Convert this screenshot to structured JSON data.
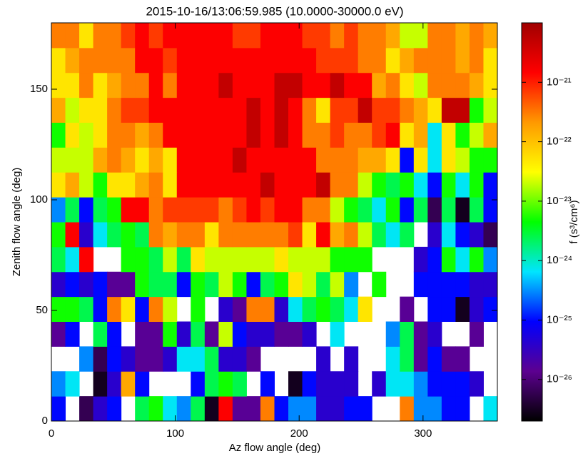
{
  "chart_data": {
    "type": "heatmap",
    "title": "2015-10-16/13:06:59.985 (10.0000-30000.0 eV)",
    "x_label": "Az flow angle (deg)",
    "y_label": "Zenith flow angle (deg)",
    "colorbar_label": "f (s³/cm⁶)",
    "xlim": [
      0,
      360
    ],
    "ylim": [
      0,
      180
    ],
    "xticks": [
      0,
      100,
      200,
      300
    ],
    "yticks": [
      0,
      50,
      100,
      150
    ],
    "xbins": [
      0,
      11.25,
      22.5,
      33.75,
      45,
      56.25,
      67.5,
      78.75,
      90,
      101.25,
      112.5,
      123.75,
      135,
      146.25,
      157.5,
      168.75,
      180,
      191.25,
      202.5,
      213.75,
      225,
      236.25,
      247.5,
      258.75,
      270,
      281.25,
      292.5,
      303.75,
      315,
      326.25,
      337.5,
      348.75,
      360
    ],
    "ybins": [
      0,
      11.25,
      22.5,
      33.75,
      45,
      56.25,
      67.5,
      78.75,
      90,
      101.25,
      112.5,
      123.75,
      135,
      146.25,
      157.5,
      168.75,
      180
    ],
    "zscale": "log",
    "zlim": [
      2e-27,
      1e-20
    ],
    "zticks": [
      {
        "value": 1e-26,
        "label": "10⁻²⁶"
      },
      {
        "value": 1e-25,
        "label": "10⁻²⁵"
      },
      {
        "value": 1e-24,
        "label": "10⁻²⁴"
      },
      {
        "value": 1e-23,
        "label": "10⁻²³"
      },
      {
        "value": 1e-22,
        "label": "10⁻²²"
      },
      {
        "value": 1e-21,
        "label": "10⁻²¹"
      }
    ],
    "colorscale": [
      "#000000",
      "#5c0090",
      "#0000ff",
      "#00e5ff",
      "#00ff00",
      "#ffff00",
      "#ff9900",
      "#ff0000",
      "#a00000"
    ],
    "z": [
      [
        1e-25,
        null,
        6e-27,
        4e-26,
        1e-25,
        null,
        2.5e-24,
        5e-24,
        7e-25,
        3e-25,
        2.5e-24,
        3e-27,
        1.5e-21,
        1.5e-26,
        1.5e-26,
        3e-22,
        1e-25,
        3e-25,
        3e-25,
        4e-26,
        4e-26,
        1e-25,
        1e-25,
        null,
        null,
        3e-22,
        3e-25,
        3e-25,
        1e-25,
        1e-25,
        null,
        7e-25
      ],
      [
        3e-25,
        7e-25,
        null,
        3e-27,
        4e-26,
        1.6e-22,
        1e-25,
        null,
        null,
        null,
        1e-25,
        2.5e-24,
        5e-24,
        2.5e-24,
        null,
        1e-25,
        null,
        3e-27,
        1e-25,
        4e-26,
        4e-26,
        4e-26,
        null,
        4e-26,
        7e-25,
        7e-25,
        3e-25,
        1e-25,
        1e-25,
        1e-25,
        4e-26,
        null
      ],
      [
        null,
        null,
        3e-25,
        6e-27,
        1e-25,
        4e-26,
        1.5e-26,
        1.5e-26,
        4e-26,
        7e-25,
        7e-25,
        2.5e-24,
        4e-26,
        4e-26,
        1.5e-26,
        null,
        null,
        null,
        null,
        4e-26,
        null,
        4e-26,
        null,
        null,
        7e-25,
        2.5e-24,
        1.5e-26,
        1e-25,
        1.5e-26,
        1.5e-26,
        null,
        null
      ],
      [
        1.5e-26,
        1e-25,
        null,
        2.5e-24,
        1e-25,
        null,
        1.5e-26,
        1.5e-26,
        5e-24,
        4e-26,
        2.5e-24,
        1.5e-26,
        2e-23,
        1e-25,
        4e-26,
        4e-26,
        1.5e-26,
        1.5e-26,
        4e-26,
        null,
        7e-25,
        null,
        null,
        null,
        3e-25,
        2.5e-24,
        1.5e-26,
        4e-26,
        null,
        null,
        1.5e-26,
        null
      ],
      [
        5e-24,
        5e-24,
        2.5e-24,
        1e-25,
        3e-22,
        5e-23,
        1e-25,
        3e-22,
        2e-23,
        null,
        5e-24,
        null,
        4e-26,
        1.5e-26,
        3e-22,
        3e-22,
        4e-26,
        7e-25,
        2.5e-24,
        5e-24,
        2.5e-24,
        7e-25,
        5e-23,
        null,
        null,
        1.5e-26,
        null,
        1e-25,
        1e-25,
        3e-27,
        4e-26,
        1e-25
      ],
      [
        4e-26,
        1e-25,
        4e-26,
        1e-25,
        1.5e-26,
        1.5e-26,
        5e-24,
        2.5e-24,
        2.5e-24,
        1e-25,
        5e-24,
        2.5e-24,
        2e-23,
        5e-24,
        1e-25,
        2.5e-24,
        5e-24,
        5e-23,
        2e-23,
        2.5e-24,
        2e-23,
        3e-25,
        null,
        5e-24,
        null,
        null,
        1e-25,
        1e-25,
        1e-25,
        1e-25,
        4e-26,
        4e-26
      ],
      [
        2.5e-24,
        7e-25,
        1.5e-21,
        null,
        null,
        5e-24,
        5e-24,
        2.5e-24,
        2e-23,
        2.5e-24,
        5e-23,
        2e-23,
        2e-23,
        2e-23,
        2e-23,
        2e-23,
        5e-23,
        2e-23,
        2e-23,
        2e-23,
        5e-24,
        5e-24,
        5e-24,
        null,
        null,
        null,
        4e-26,
        1e-25,
        5e-24,
        7e-25,
        5e-24,
        3e-25
      ],
      [
        5e-24,
        1.5e-21,
        4e-26,
        7e-25,
        2.5e-24,
        5e-24,
        2.5e-24,
        3e-22,
        1.6e-22,
        3e-22,
        3e-22,
        5e-23,
        3e-22,
        3e-22,
        3e-22,
        3e-22,
        3e-22,
        7e-22,
        5e-23,
        1.5e-21,
        1.6e-22,
        3e-22,
        2e-23,
        2.5e-24,
        7e-25,
        2.5e-24,
        null,
        4e-26,
        7e-25,
        1e-25,
        4e-26,
        6e-27
      ],
      [
        3e-25,
        2.5e-24,
        1e-25,
        2.5e-24,
        5e-24,
        1.5e-21,
        1.5e-21,
        3e-22,
        7e-22,
        7e-22,
        7e-22,
        7e-22,
        3e-22,
        7e-22,
        1.5e-21,
        7e-22,
        1.5e-21,
        1.5e-21,
        3e-22,
        3e-22,
        2e-23,
        5e-24,
        2.5e-24,
        7e-25,
        5e-24,
        1e-25,
        2.5e-24,
        6e-27,
        2.5e-24,
        3e-27,
        2.5e-24,
        1e-25
      ],
      [
        5e-23,
        1.6e-22,
        2e-23,
        5e-24,
        5e-23,
        5e-23,
        1.6e-22,
        3e-22,
        5e-23,
        1.5e-21,
        1.5e-21,
        1.5e-21,
        1.5e-21,
        1.5e-21,
        1.5e-21,
        5e-21,
        1.5e-21,
        1.5e-21,
        1.5e-21,
        5e-21,
        3e-22,
        3e-22,
        2e-23,
        5e-24,
        2.5e-24,
        5e-24,
        7e-25,
        1e-25,
        5e-24,
        7e-25,
        5e-24,
        1e-25
      ],
      [
        2e-23,
        2e-23,
        2e-23,
        1.6e-22,
        3e-22,
        1.6e-22,
        5e-23,
        1.6e-22,
        5e-23,
        1.5e-21,
        1.5e-21,
        1.5e-21,
        1.5e-21,
        5e-21,
        1.5e-21,
        1.5e-21,
        1.5e-21,
        1.5e-21,
        1.5e-21,
        3e-22,
        3e-22,
        3e-22,
        1.6e-22,
        1.6e-22,
        5e-23,
        1e-25,
        5e-23,
        7e-25,
        5e-23,
        2e-23,
        5e-24,
        5e-24
      ],
      [
        5e-24,
        5e-23,
        2e-23,
        5e-23,
        3e-22,
        3e-22,
        1.6e-22,
        3e-22,
        1.5e-21,
        1.5e-21,
        1.5e-21,
        1.5e-21,
        1.5e-21,
        1.5e-21,
        5e-21,
        1.5e-21,
        5e-21,
        1.5e-21,
        3e-22,
        3e-22,
        7e-22,
        3e-22,
        3e-22,
        7e-22,
        1.5e-21,
        5e-23,
        1.6e-22,
        7e-25,
        5e-23,
        5e-24,
        2e-23,
        1.6e-22
      ],
      [
        1.6e-22,
        2e-23,
        5e-23,
        5e-23,
        3e-22,
        7e-22,
        7e-22,
        1.5e-21,
        1.5e-21,
        1.5e-21,
        1.5e-21,
        1.5e-21,
        1.5e-21,
        1.5e-21,
        5e-21,
        1.5e-21,
        5e-21,
        1.5e-21,
        3e-22,
        5e-23,
        7e-22,
        7e-22,
        5e-21,
        7e-22,
        7e-22,
        3e-22,
        1.6e-22,
        5e-23,
        5e-21,
        5e-21,
        5e-24,
        2e-23
      ],
      [
        5e-23,
        5e-23,
        3e-22,
        5e-23,
        1.6e-22,
        3e-22,
        3e-22,
        1.5e-21,
        3e-22,
        1.5e-21,
        1.5e-21,
        1.5e-21,
        5e-21,
        1.5e-21,
        1.5e-21,
        1.5e-21,
        5e-21,
        5e-21,
        1.5e-21,
        1.5e-21,
        5e-21,
        1.5e-21,
        1.5e-21,
        1.6e-22,
        3e-22,
        5e-23,
        2e-23,
        3e-22,
        3e-22,
        3e-22,
        1.6e-22,
        5e-23
      ],
      [
        5e-23,
        1.6e-22,
        3e-22,
        3e-22,
        3e-22,
        3e-22,
        1.5e-21,
        1.5e-21,
        7e-22,
        1.5e-21,
        1.5e-21,
        1.5e-21,
        1.5e-21,
        1.5e-21,
        1.5e-21,
        1.5e-21,
        1.5e-21,
        1.5e-21,
        1.5e-21,
        7e-22,
        7e-22,
        7e-22,
        3e-22,
        3e-22,
        5e-23,
        1.6e-22,
        3e-22,
        3e-22,
        3e-22,
        1.6e-22,
        3e-22,
        5e-23
      ],
      [
        3e-22,
        3e-22,
        5e-23,
        3e-22,
        3e-22,
        7e-22,
        1.5e-21,
        7e-22,
        1.5e-21,
        1.5e-21,
        1.5e-21,
        1.5e-21,
        1.5e-21,
        7e-22,
        7e-22,
        1.5e-21,
        1.5e-21,
        1.5e-21,
        7e-22,
        7e-22,
        3e-22,
        7e-22,
        3e-22,
        3e-22,
        1.6e-22,
        2e-23,
        2e-23,
        3e-22,
        3e-22,
        1.6e-22,
        3e-22,
        1.6e-22
      ]
    ]
  }
}
